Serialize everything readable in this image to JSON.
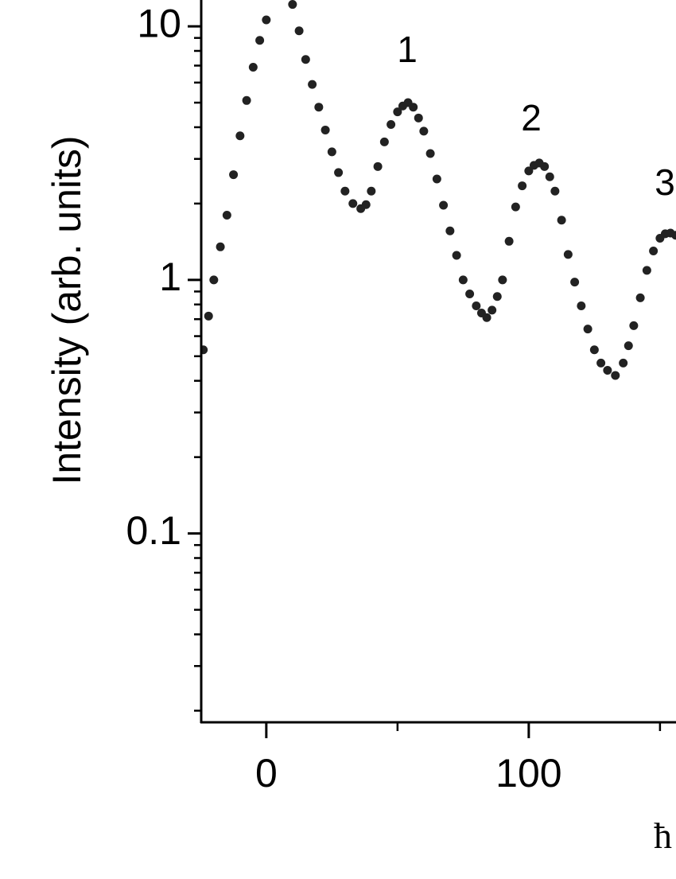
{
  "chart_data": {
    "type": "scatter",
    "ylabel": "Intensity (arb. units)",
    "xlabel": "ħ",
    "annotations": [
      "1",
      "2",
      "3"
    ],
    "x": [
      -24,
      -22,
      -20,
      -17.5,
      -15,
      -12.5,
      -10,
      -7.5,
      -5,
      -2.5,
      0,
      10,
      12.5,
      15,
      17.5,
      20,
      22.5,
      25,
      27.5,
      30,
      33,
      36,
      38,
      40,
      42.5,
      45,
      47.5,
      50,
      52,
      54,
      56,
      58,
      60,
      62.5,
      65,
      67.5,
      70,
      72.5,
      75,
      77.5,
      80,
      82,
      84,
      86,
      88,
      90,
      92.5,
      95,
      97.5,
      100,
      102,
      104,
      106,
      108,
      110,
      112.5,
      115,
      117.5,
      120,
      122.5,
      125,
      127.5,
      130,
      133,
      136,
      138,
      140,
      142.5,
      145,
      147.5,
      150,
      152,
      154,
      156
    ],
    "values": [
      0.53,
      0.72,
      1.0,
      1.35,
      1.8,
      2.6,
      3.7,
      5.1,
      6.9,
      8.8,
      10.6,
      12.2,
      9.6,
      7.4,
      5.9,
      4.8,
      3.9,
      3.2,
      2.65,
      2.24,
      2.0,
      1.91,
      1.98,
      2.24,
      2.8,
      3.5,
      4.1,
      4.6,
      4.85,
      5.0,
      4.8,
      4.35,
      3.86,
      3.15,
      2.5,
      1.97,
      1.56,
      1.25,
      1.0,
      0.88,
      0.79,
      0.74,
      0.71,
      0.76,
      0.86,
      1.0,
      1.42,
      1.94,
      2.35,
      2.69,
      2.83,
      2.89,
      2.8,
      2.55,
      2.24,
      1.72,
      1.26,
      0.98,
      0.79,
      0.64,
      0.53,
      0.47,
      0.44,
      0.42,
      0.47,
      0.55,
      0.66,
      0.85,
      1.09,
      1.3,
      1.46,
      1.52,
      1.53,
      1.5
    ],
    "color": "#222222",
    "xlim": [
      -24.8,
      156.1
    ],
    "ylim": [
      0.018,
      12.7
    ],
    "log_y": true,
    "xticks": [
      0,
      100
    ],
    "xminorticks": [
      50,
      150
    ],
    "yticks": [
      0.1,
      1,
      10
    ],
    "yminorticks": [
      0.02,
      0.03,
      0.04,
      0.05,
      0.06,
      0.07,
      0.08,
      0.09,
      0.2,
      0.3,
      0.4,
      0.5,
      0.6,
      0.7,
      0.8,
      0.9,
      2,
      3,
      4,
      5,
      6,
      7,
      8,
      9
    ]
  }
}
